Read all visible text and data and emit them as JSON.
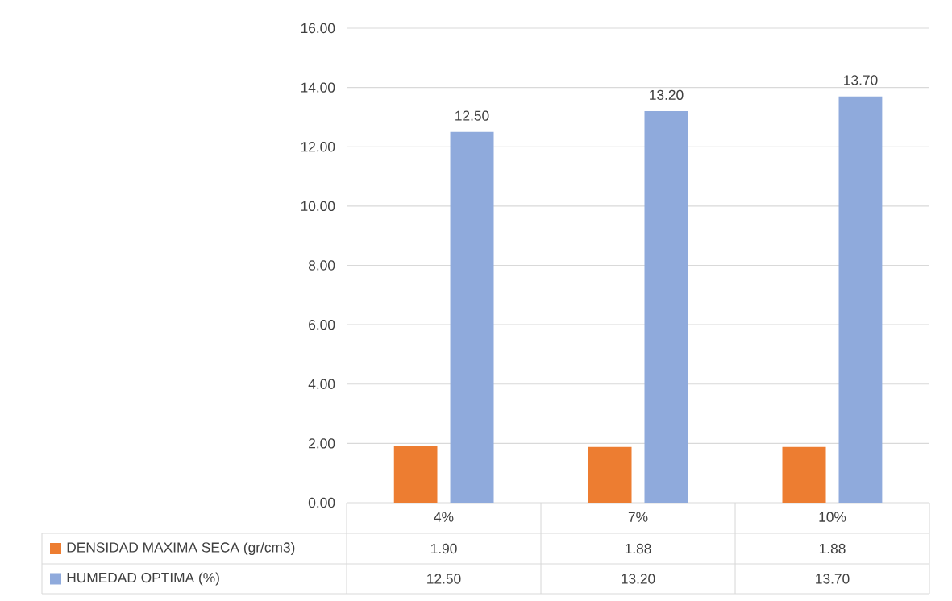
{
  "chart_data": {
    "type": "bar",
    "categories": [
      "4%",
      "7%",
      "10%"
    ],
    "series": [
      {
        "name": "DENSIDAD MAXIMA SECA (gr/cm3)",
        "color": "#ed7d31",
        "values": [
          1.9,
          1.88,
          1.88
        ],
        "value_labels": [
          "1.90",
          "1.88",
          "1.88"
        ]
      },
      {
        "name": "HUMEDAD OPTIMA (%)",
        "color": "#8faadc",
        "values": [
          12.5,
          13.2,
          13.7
        ],
        "value_labels": [
          "12.50",
          "13.20",
          "13.70"
        ]
      }
    ],
    "ylim": [
      0,
      16
    ],
    "yticks": [
      {
        "value": 0,
        "label": "0.00"
      },
      {
        "value": 2,
        "label": "2.00"
      },
      {
        "value": 4,
        "label": "4.00"
      },
      {
        "value": 6,
        "label": "6.00"
      },
      {
        "value": 8,
        "label": "8.00"
      },
      {
        "value": 10,
        "label": "10.00"
      },
      {
        "value": 12,
        "label": "12.00"
      },
      {
        "value": 14,
        "label": "14.00"
      },
      {
        "value": 16,
        "label": "16.00"
      }
    ],
    "annotations": [
      "12.50",
      "13.20",
      "13.70"
    ],
    "grid": "y",
    "legend": "bottom",
    "data_labels": true
  }
}
